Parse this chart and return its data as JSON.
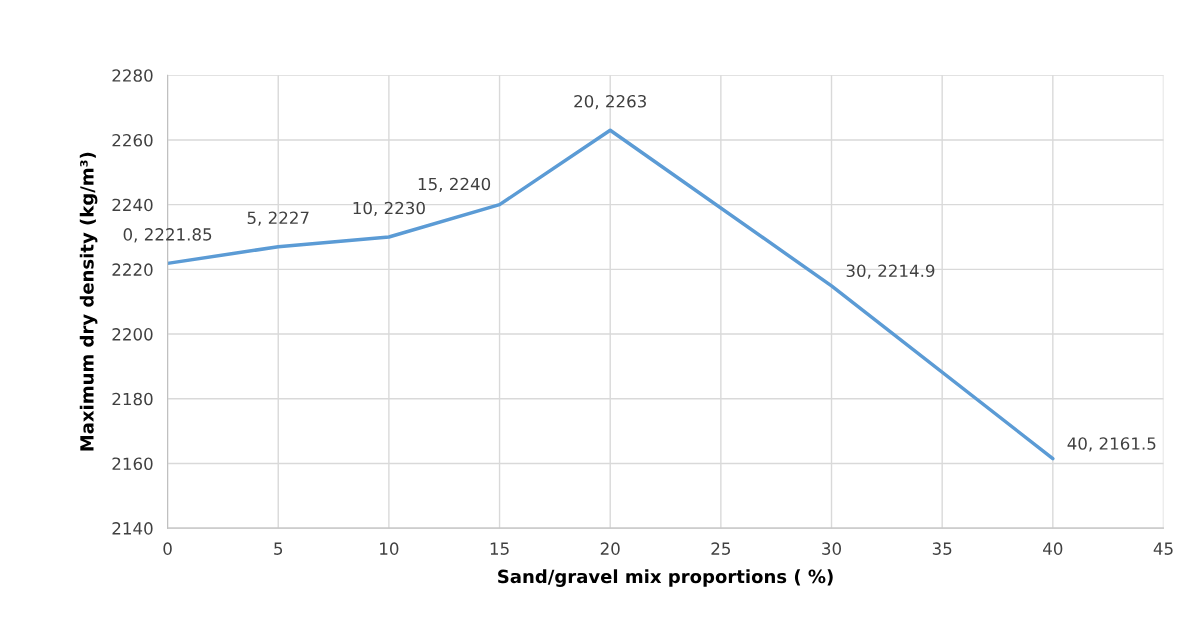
{
  "chart_data": {
    "type": "line",
    "xlabel": "Sand/gravel mix proportions ( %)",
    "ylabel": "Maximum dry density (kg/m³)",
    "x": [
      0,
      5,
      10,
      15,
      20,
      30,
      40
    ],
    "series": [
      {
        "color": "#5b9bd5",
        "values": [
          2221.85,
          2227,
          2230,
          2240,
          2263,
          2214.9,
          2161.5
        ],
        "value_labels": [
          "0, 2221.85",
          "5, 2227",
          "10, 2230",
          "15, 2240",
          "20, 2263",
          "30, 2214.9",
          "40, 2161.5"
        ]
      }
    ],
    "xlim": [
      0,
      45
    ],
    "xticks": [
      0,
      5,
      10,
      15,
      20,
      25,
      30,
      35,
      40,
      45
    ],
    "ylim": [
      2140,
      2280
    ],
    "yticks": [
      2140,
      2160,
      2180,
      2200,
      2220,
      2240,
      2260,
      2280
    ],
    "grid": true,
    "marker": "none",
    "line_style": "solid",
    "legend": false
  }
}
